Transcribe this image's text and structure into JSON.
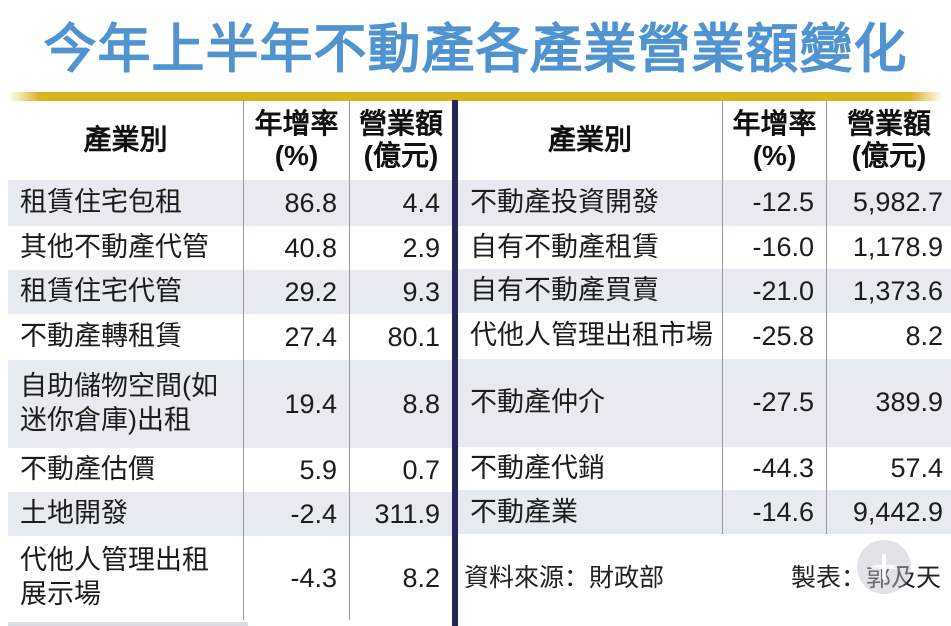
{
  "title": "今年上半年不動產各產業營業額變化",
  "header": {
    "industry": "產業別",
    "yoy": "年增率",
    "yoy_unit": "(%)",
    "revenue": "營業額",
    "revenue_unit": "(億元)"
  },
  "chart_data": {
    "type": "table",
    "title": "今年上半年不動產各產業營業額變化",
    "columns": [
      "產業別",
      "年增率(%)",
      "營業額(億元)"
    ],
    "tables": [
      {
        "rows": [
          {
            "industry": "租賃住宅包租",
            "yoy": "86.8",
            "revenue": "4.4"
          },
          {
            "industry": "其他不動產代管",
            "yoy": "40.8",
            "revenue": "2.9"
          },
          {
            "industry": "租賃住宅代管",
            "yoy": "29.2",
            "revenue": "9.3"
          },
          {
            "industry": "不動產轉租賃",
            "yoy": "27.4",
            "revenue": "80.1"
          },
          {
            "industry": "自助儲物空間(如\n迷你倉庫)出租",
            "yoy": "19.4",
            "revenue": "8.8"
          },
          {
            "industry": "不動產估價",
            "yoy": "5.9",
            "revenue": "0.7"
          },
          {
            "industry": "土地開發",
            "yoy": "-2.4",
            "revenue": "311.9"
          },
          {
            "industry": "代他人管理出租\n展示場",
            "yoy": "-4.3",
            "revenue": "8.2"
          }
        ]
      },
      {
        "rows": [
          {
            "industry": "不動產投資開發",
            "yoy": "-12.5",
            "revenue": "5,982.7"
          },
          {
            "industry": "自有不動產租賃",
            "yoy": "-16.0",
            "revenue": "1,178.9"
          },
          {
            "industry": "自有不動產買賣",
            "yoy": "-21.0",
            "revenue": "1,373.6"
          },
          {
            "industry": "代他人管理出租市場",
            "yoy": "-25.8",
            "revenue": "8.2"
          },
          {
            "industry": "不動產仲介",
            "yoy": "-27.5",
            "revenue": "389.9"
          },
          {
            "industry": "不動產代銷",
            "yoy": "-44.3",
            "revenue": "57.4"
          },
          {
            "industry": "不動產業",
            "yoy": "-14.6",
            "revenue": "9,442.9"
          }
        ]
      }
    ],
    "source": "資料來源：財政部",
    "credit": "製表：郭及天"
  },
  "icons": {
    "watermark": "plus-circle-icon"
  },
  "colors": {
    "title_blue": "#4f94d0",
    "gold_bar": "#d9b31c",
    "row_shade": "#e7eaf1",
    "divider_navy": "#26265c",
    "grid_line": "#9599a4"
  }
}
